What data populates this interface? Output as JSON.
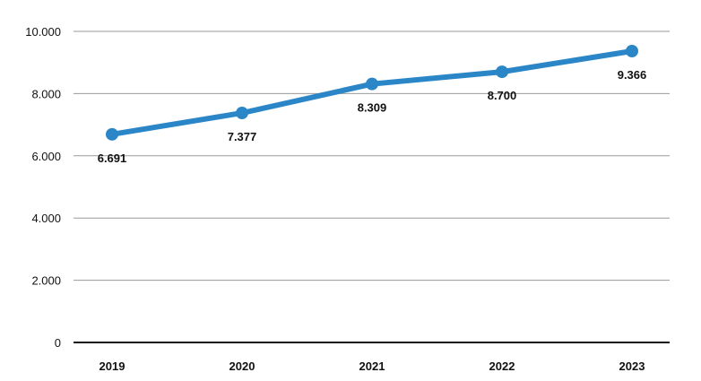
{
  "chart_data": {
    "type": "line",
    "title": "",
    "xlabel": "",
    "ylabel": "",
    "x": [
      "2019",
      "2020",
      "2021",
      "2022",
      "2023"
    ],
    "series": [
      {
        "values": [
          6691,
          7377,
          8309,
          8700,
          9366
        ],
        "labels": [
          "6.691",
          "7.377",
          "8.309",
          "8.700",
          "9.366"
        ],
        "color": "#2b86c8"
      }
    ],
    "ylim": [
      0,
      10000
    ],
    "yticks": [
      0,
      2000,
      4000,
      6000,
      8000,
      10000
    ],
    "ytick_labels": [
      "0",
      "2.000",
      "4.000",
      "6.000",
      "8.000",
      "10.000"
    ],
    "grid": true,
    "legend": "none"
  }
}
